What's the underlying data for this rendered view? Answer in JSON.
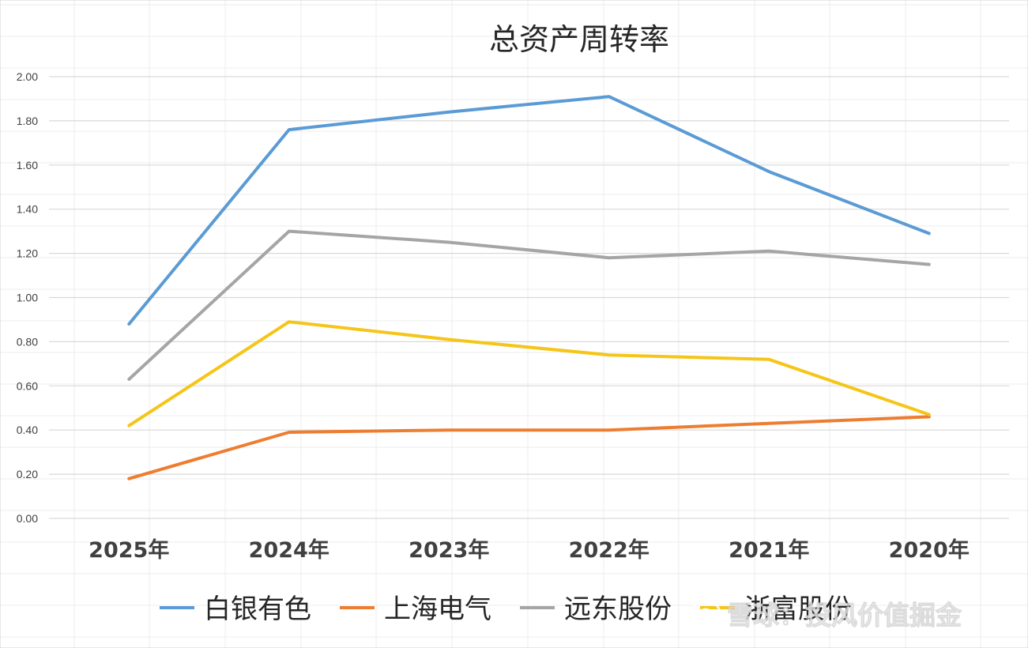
{
  "chart_data": {
    "type": "line",
    "title": "总资产周转率",
    "categories": [
      "2025年",
      "2024年",
      "2023年",
      "2022年",
      "2021年",
      "2020年"
    ],
    "ylim": [
      0,
      2
    ],
    "yticks": [
      "0.00",
      "0.20",
      "0.40",
      "0.60",
      "0.80",
      "1.00",
      "1.20",
      "1.40",
      "1.60",
      "1.80",
      "2.00"
    ],
    "grid": true,
    "legend_position": "bottom",
    "series": [
      {
        "name": "白银有色",
        "color": "#5b9bd5",
        "values": [
          0.88,
          1.76,
          1.84,
          1.91,
          1.57,
          1.29
        ]
      },
      {
        "name": "上海电气",
        "color": "#ed7d31",
        "values": [
          0.18,
          0.39,
          0.4,
          0.4,
          0.43,
          0.46
        ]
      },
      {
        "name": "远东股份",
        "color": "#a5a5a5",
        "values": [
          0.63,
          1.3,
          1.25,
          1.18,
          1.21,
          1.15
        ]
      },
      {
        "name": "浙富股份",
        "color": "#f5c518",
        "values": [
          0.42,
          0.89,
          0.81,
          0.74,
          0.72,
          0.47
        ]
      }
    ]
  },
  "watermark": {
    "text": "雪球：投风价值掘金"
  }
}
